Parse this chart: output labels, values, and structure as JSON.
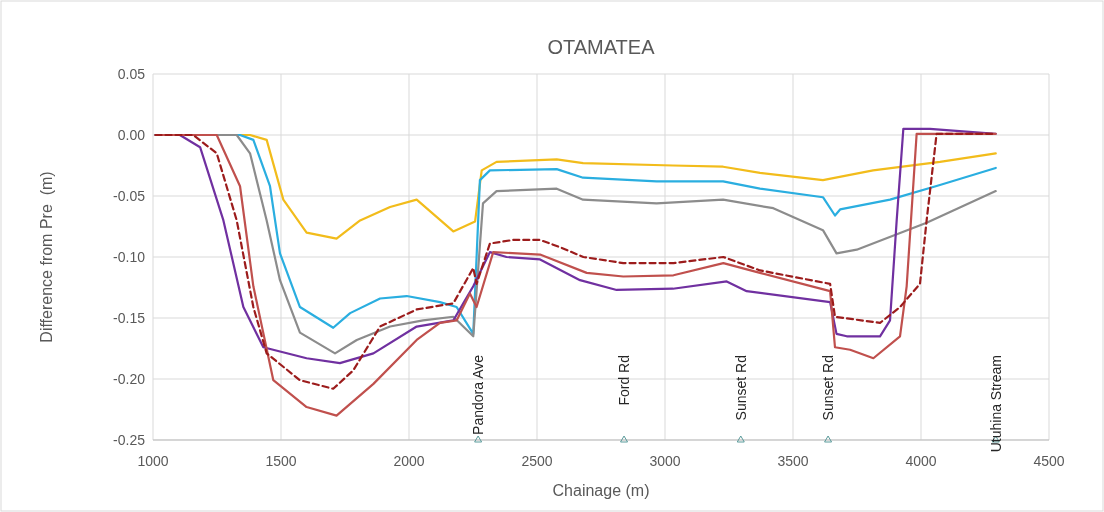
{
  "chart_data": {
    "type": "line",
    "title": "OTAMATEA",
    "xlabel": "Chainage (m)",
    "ylabel": "Difference from Pre  (m)",
    "xlim": [
      1000,
      4500
    ],
    "xticks": [
      1000,
      1500,
      2000,
      2500,
      3000,
      3500,
      4000,
      4500
    ],
    "ylim": [
      -0.25,
      0.05
    ],
    "yticks": [
      {
        "value": -0.25,
        "label": "-0.25"
      },
      {
        "value": -0.2,
        "label": "-0.20"
      },
      {
        "value": -0.15,
        "label": "-0.15"
      },
      {
        "value": -0.1,
        "label": "-0.10"
      },
      {
        "value": -0.05,
        "label": "-0.05"
      },
      {
        "value": 0,
        "label": "0.00"
      },
      {
        "value": 0.05,
        "label": "0.05"
      }
    ],
    "grid": true,
    "marker": "none",
    "annotations": [
      {
        "text": "Pandora Ave",
        "x": 2270,
        "y": -0.25
      },
      {
        "text": "Ford Rd",
        "x": 2840,
        "y": -0.25
      },
      {
        "text": "Sunset Rd",
        "x": 3296,
        "y": -0.25
      },
      {
        "text": "Sunset Rd",
        "x": 3637,
        "y": -0.25
      },
      {
        "text": "Utuhina Stream",
        "x": 4292,
        "y": -0.25
      }
    ],
    "series": [
      {
        "color": "#f2bc1b",
        "x": [
          1010,
          1379,
          1444,
          1509,
          1600,
          1717,
          1809,
          1926,
          2030,
          2173,
          2258,
          2284,
          2342,
          2577,
          2680,
          3031,
          3227,
          3371,
          3617,
          3813,
          4074,
          4292
        ],
        "values": [
          0,
          0,
          -0.004,
          -0.053,
          -0.08,
          -0.085,
          -0.07,
          -0.059,
          -0.053,
          -0.079,
          -0.071,
          -0.029,
          -0.022,
          -0.02,
          -0.023,
          -0.025,
          -0.026,
          -0.031,
          -0.037,
          -0.029,
          -0.022,
          -0.015
        ]
      },
      {
        "color": "#2aaee0",
        "x": [
          1010,
          1340,
          1392,
          1457,
          1496,
          1574,
          1704,
          1770,
          1887,
          1991,
          2121,
          2186,
          2251,
          2277,
          2316,
          2577,
          2680,
          2967,
          3227,
          3371,
          3617,
          3664,
          3684,
          3879,
          4074,
          4292
        ],
        "values": [
          0,
          0,
          -0.004,
          -0.042,
          -0.097,
          -0.141,
          -0.158,
          -0.146,
          -0.134,
          -0.132,
          -0.137,
          -0.141,
          -0.163,
          -0.037,
          -0.029,
          -0.028,
          -0.035,
          -0.038,
          -0.038,
          -0.044,
          -0.051,
          -0.066,
          -0.061,
          -0.053,
          -0.041,
          -0.027
        ]
      },
      {
        "color": "#8c8c8c",
        "x": [
          1010,
          1327,
          1379,
          1444,
          1496,
          1574,
          1711,
          1796,
          1926,
          2055,
          2173,
          2251,
          2289,
          2342,
          2577,
          2680,
          2967,
          3227,
          3423,
          3617,
          3670,
          3749,
          4022,
          4292
        ],
        "values": [
          0,
          0,
          -0.015,
          -0.07,
          -0.119,
          -0.162,
          -0.179,
          -0.168,
          -0.157,
          -0.152,
          -0.149,
          -0.165,
          -0.056,
          -0.046,
          -0.044,
          -0.053,
          -0.056,
          -0.053,
          -0.06,
          -0.078,
          -0.097,
          -0.094,
          -0.072,
          -0.046
        ]
      },
      {
        "color": "#7030a0",
        "x": [
          1010,
          1105,
          1184,
          1275,
          1353,
          1431,
          1600,
          1730,
          1861,
          2030,
          2173,
          2212,
          2251,
          2316,
          2381,
          2512,
          2668,
          2811,
          3031,
          3241,
          3319,
          3645,
          3670,
          3710,
          3840,
          3879,
          3905,
          3931,
          4035,
          4292
        ],
        "values": [
          0,
          0,
          -0.01,
          -0.07,
          -0.141,
          -0.174,
          -0.183,
          -0.187,
          -0.179,
          -0.157,
          -0.152,
          -0.138,
          -0.124,
          -0.096,
          -0.1,
          -0.102,
          -0.119,
          -0.127,
          -0.126,
          -0.12,
          -0.128,
          -0.137,
          -0.163,
          -0.165,
          -0.165,
          -0.152,
          -0.07,
          0.005,
          0.005,
          0.001
        ]
      },
      {
        "color": "#c0504d",
        "x": [
          1010,
          1249,
          1340,
          1392,
          1470,
          1600,
          1717,
          1861,
          2030,
          2121,
          2186,
          2238,
          2264,
          2329,
          2512,
          2694,
          2837,
          3033,
          3228,
          3371,
          3645,
          3664,
          3723,
          3814,
          3918,
          3944,
          3983,
          4292
        ],
        "values": [
          0,
          0,
          -0.042,
          -0.124,
          -0.201,
          -0.223,
          -0.23,
          -0.204,
          -0.168,
          -0.154,
          -0.152,
          -0.13,
          -0.141,
          -0.096,
          -0.098,
          -0.113,
          -0.116,
          -0.115,
          -0.105,
          -0.113,
          -0.128,
          -0.174,
          -0.176,
          -0.183,
          -0.165,
          -0.124,
          0.001,
          0.001
        ]
      },
      {
        "color": "#9c1c1c",
        "line_style": "dashed",
        "x": [
          1010,
          1157,
          1249,
          1327,
          1392,
          1444,
          1574,
          1704,
          1782,
          1887,
          2030,
          2173,
          2251,
          2264,
          2316,
          2407,
          2512,
          2590,
          2681,
          2837,
          3033,
          3228,
          3371,
          3645,
          3664,
          3840,
          3918,
          3996,
          4022,
          4061,
          4292
        ],
        "values": [
          0,
          0,
          -0.015,
          -0.07,
          -0.141,
          -0.179,
          -0.201,
          -0.208,
          -0.193,
          -0.157,
          -0.143,
          -0.138,
          -0.109,
          -0.122,
          -0.089,
          -0.086,
          -0.086,
          -0.092,
          -0.1,
          -0.105,
          -0.105,
          -0.1,
          -0.111,
          -0.122,
          -0.149,
          -0.154,
          -0.141,
          -0.122,
          -0.07,
          0.001,
          0.001
        ]
      }
    ]
  }
}
